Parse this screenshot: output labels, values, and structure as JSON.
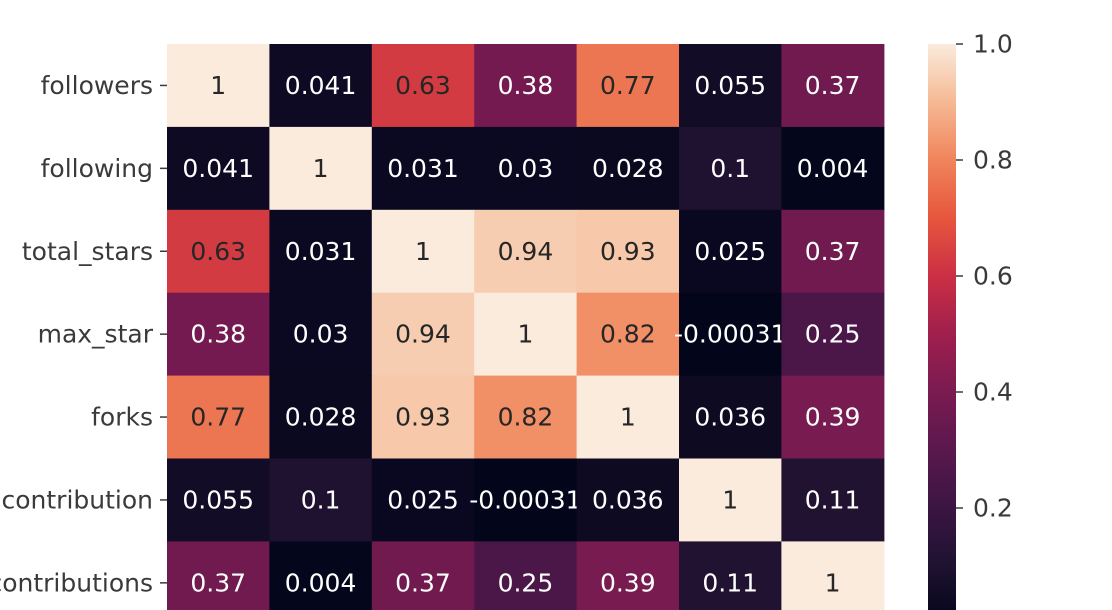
{
  "chart_data": {
    "type": "heatmap",
    "title": "",
    "row_labels": [
      "followers",
      "following",
      "total_stars",
      "max_star",
      "forks",
      "contribution",
      "contributions"
    ],
    "values": [
      [
        1,
        0.041,
        0.63,
        0.38,
        0.77,
        0.055,
        0.37
      ],
      [
        0.041,
        1,
        0.031,
        0.03,
        0.028,
        0.1,
        0.004
      ],
      [
        0.63,
        0.031,
        1,
        0.94,
        0.93,
        0.025,
        0.37
      ],
      [
        0.38,
        0.03,
        0.94,
        1,
        0.82,
        -0.00031,
        0.25
      ],
      [
        0.77,
        0.028,
        0.93,
        0.82,
        1,
        0.036,
        0.39
      ],
      [
        0.055,
        0.1,
        0.025,
        -0.00031,
        0.036,
        1,
        0.11
      ],
      [
        0.37,
        0.004,
        0.37,
        0.25,
        0.39,
        0.11,
        1
      ]
    ],
    "cell_labels": [
      [
        "1",
        "0.041",
        "0.63",
        "0.38",
        "0.77",
        "0.055",
        "0.37"
      ],
      [
        "0.041",
        "1",
        "0.031",
        "0.03",
        "0.028",
        "0.1",
        "0.004"
      ],
      [
        "0.63",
        "0.031",
        "1",
        "0.94",
        "0.93",
        "0.025",
        "0.37"
      ],
      [
        "0.38",
        "0.03",
        "0.94",
        "1",
        "0.82",
        "-0.00031",
        "0.25"
      ],
      [
        "0.77",
        "0.028",
        "0.93",
        "0.82",
        "1",
        "0.036",
        "0.39"
      ],
      [
        "0.055",
        "0.1",
        "0.025",
        "-0.00031",
        "0.036",
        "1",
        "0.11"
      ],
      [
        "0.37",
        "0.004",
        "0.37",
        "0.25",
        "0.39",
        "0.11",
        "1"
      ]
    ],
    "colormap": "rocket",
    "colorbar": {
      "range": [
        0,
        1
      ],
      "ticks": [
        0.2,
        0.4,
        0.6,
        0.8,
        1.0
      ],
      "tick_labels": [
        "0.2",
        "0.4",
        "0.6",
        "0.8",
        "1.0"
      ]
    }
  }
}
